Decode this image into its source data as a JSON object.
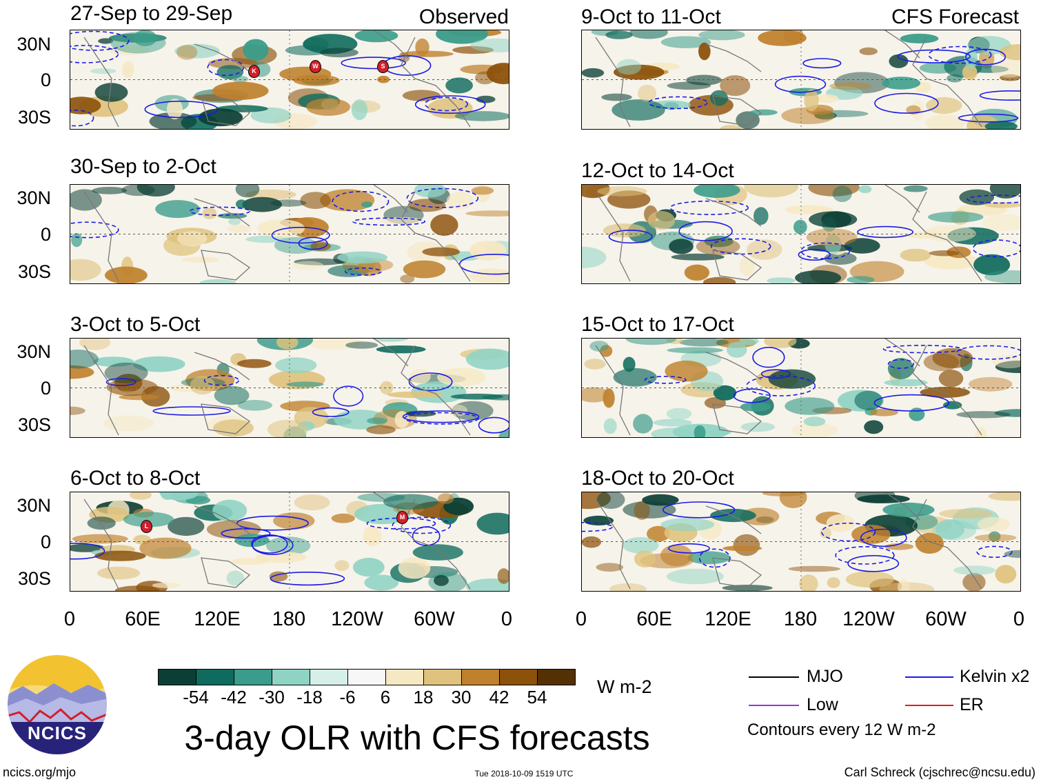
{
  "header": {
    "left_label": "Observed",
    "right_label": "CFS Forecast"
  },
  "panels": {
    "observed": [
      {
        "title": "27-Sep to 29-Sep",
        "storms": [
          "K",
          "W",
          "S"
        ]
      },
      {
        "title": "30-Sep to 2-Oct",
        "storms": []
      },
      {
        "title": "3-Oct to 5-Oct",
        "storms": []
      },
      {
        "title": "6-Oct to 8-Oct",
        "storms": [
          "L",
          "M"
        ]
      }
    ],
    "forecast": [
      {
        "title": "9-Oct to 11-Oct"
      },
      {
        "title": "12-Oct to 14-Oct"
      },
      {
        "title": "15-Oct to 17-Oct"
      },
      {
        "title": "18-Oct to 20-Oct"
      }
    ]
  },
  "axes": {
    "lat_labels": [
      "30N",
      "0",
      "30S"
    ],
    "lon_labels": [
      "0",
      "60E",
      "120E",
      "180",
      "120W",
      "60W",
      "0"
    ]
  },
  "colorbar": {
    "colors": [
      "#0b3f35",
      "#0f6b5d",
      "#3a9c8a",
      "#8fd3c4",
      "#d6efe9",
      "#f7f7f7",
      "#f6e8c3",
      "#dfc27d",
      "#bf812d",
      "#8c510a",
      "#543005"
    ],
    "labels": [
      "-54",
      "-42",
      "-30",
      "-18",
      "-6",
      "6",
      "18",
      "30",
      "42",
      "54"
    ],
    "units": "W m-2"
  },
  "legend": {
    "items": [
      {
        "label": "MJO",
        "color": "#000000"
      },
      {
        "label": "Kelvin x2",
        "color": "#1a1ae6"
      },
      {
        "label": "Low",
        "color": "#9b30d9"
      },
      {
        "label": "ER",
        "color": "#e31a1c"
      }
    ],
    "note": "Contours every 12 W m-2"
  },
  "title": "3-day OLR with CFS forecasts",
  "logo": {
    "text": "NCICS"
  },
  "footer": {
    "left": "ncics.org/mjo",
    "center": "Tue 2018-10-09 1519 UTC",
    "right": "Carl Schreck (cjschrec@ncsu.edu)"
  }
}
